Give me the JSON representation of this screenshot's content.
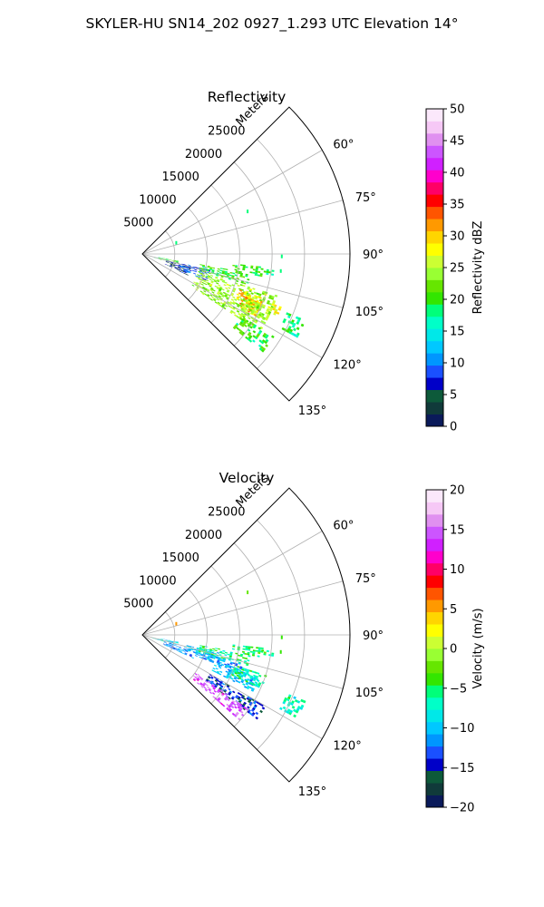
{
  "figure": {
    "suptitle": "SKYLER-HU  SN14_202  0927_1.293 UTC Elevation 14°"
  },
  "chart_data": [
    {
      "type": "heatmap",
      "subtype": "polar-sector-radar",
      "title": "Reflectivity",
      "radial_label": "Meters",
      "radial_ticks": [
        5000,
        10000,
        15000,
        20000,
        25000
      ],
      "radial_tick_labels": [
        "5000",
        "10000",
        "15000",
        "20000",
        "25000"
      ],
      "radial_range": [
        0,
        32000
      ],
      "angle_range_deg": [
        45,
        135
      ],
      "angle_ticks": [
        60,
        75,
        90,
        105,
        120,
        135
      ],
      "angle_tick_labels": [
        "60°",
        "75°",
        "90°",
        "105°",
        "120°",
        "135°"
      ],
      "grid": true,
      "colorbar": {
        "label": "Reflectivity dBZ",
        "range": [
          0,
          50
        ],
        "ticks": [
          0,
          5,
          10,
          15,
          20,
          25,
          30,
          35,
          40,
          45,
          50
        ],
        "tick_labels": [
          "0",
          "5",
          "10",
          "15",
          "20",
          "25",
          "30",
          "35",
          "40",
          "45",
          "50"
        ],
        "colors": [
          "#0a1a5a",
          "#103a3a",
          "#0d5a3a",
          "#0000c8",
          "#1a50ff",
          "#0096ff",
          "#00c8ff",
          "#00e8e8",
          "#00ffc8",
          "#00ff7a",
          "#33e600",
          "#66e600",
          "#99ff33",
          "#ccff33",
          "#ffff00",
          "#ffd500",
          "#ff9900",
          "#ff5500",
          "#ff0000",
          "#ff0066",
          "#ff00cc",
          "#d020ff",
          "#cc55ff",
          "#e090f0",
          "#f6c8f6",
          "#fbe8fb"
        ]
      },
      "echo_regions": [
        {
          "r": [
            1500,
            3200
          ],
          "az": [
            105,
            108
          ],
          "value": 20
        },
        {
          "r": [
            2500,
            5500
          ],
          "az": [
            101,
            106
          ],
          "value": 20
        },
        {
          "r": [
            3800,
            7500
          ],
          "az": [
            104,
            115
          ],
          "value": 5
        },
        {
          "r": [
            6000,
            10500
          ],
          "az": [
            103,
            112
          ],
          "value": 9
        },
        {
          "r": [
            9000,
            17000
          ],
          "az": [
            100,
            106
          ],
          "value": 20
        },
        {
          "r": [
            14000,
            18500
          ],
          "az": [
            96,
            100
          ],
          "value": 20
        },
        {
          "r": [
            9000,
            21500
          ],
          "az": [
            107,
            123
          ],
          "value": 24
        },
        {
          "r": [
            16000,
            20000
          ],
          "az": [
            110,
            118
          ],
          "value": 30
        },
        {
          "r": [
            21000,
            23000
          ],
          "az": [
            110,
            114
          ],
          "value": 28
        },
        {
          "r": [
            17000,
            21500
          ],
          "az": [
            113,
            118
          ],
          "value": 24
        },
        {
          "r": [
            18000,
            24000
          ],
          "az": [
            122,
            129
          ],
          "value": 20
        },
        {
          "r": [
            24000,
            27000
          ],
          "az": [
            112,
            118
          ],
          "value": 18
        },
        {
          "r": [
            18500,
            20500
          ],
          "az": [
            97,
            99
          ],
          "value": 18
        }
      ],
      "isolated_echoes": [
        {
          "r": 5500,
          "az": 72,
          "value": 18
        },
        {
          "r": 17500,
          "az": 68,
          "value": 18
        },
        {
          "r": 21500,
          "az": 91,
          "value": 18
        },
        {
          "r": 21500,
          "az": 97,
          "value": 18
        }
      ]
    },
    {
      "type": "heatmap",
      "subtype": "polar-sector-radar",
      "title": "Velocity",
      "radial_label": "Meters",
      "radial_ticks": [
        5000,
        10000,
        15000,
        20000,
        25000
      ],
      "radial_tick_labels": [
        "5000",
        "10000",
        "15000",
        "20000",
        "25000"
      ],
      "radial_range": [
        0,
        32000
      ],
      "angle_range_deg": [
        45,
        135
      ],
      "angle_ticks": [
        60,
        75,
        90,
        105,
        120,
        135
      ],
      "angle_tick_labels": [
        "60°",
        "75°",
        "90°",
        "105°",
        "120°",
        "135°"
      ],
      "grid": true,
      "colorbar": {
        "label": "Velocity (m/s)",
        "range": [
          -20,
          20
        ],
        "ticks": [
          -20,
          -15,
          -10,
          -5,
          0,
          5,
          10,
          15,
          20
        ],
        "tick_labels": [
          "−20",
          "−15",
          "−10",
          "−5",
          "0",
          "5",
          "10",
          "15",
          "20"
        ],
        "colors": [
          "#0a1a5a",
          "#103a3a",
          "#0d5a3a",
          "#0000c8",
          "#1a50ff",
          "#0096ff",
          "#00c8ff",
          "#00e8e8",
          "#00ffc8",
          "#00ff7a",
          "#33e600",
          "#66e600",
          "#99ff33",
          "#ccff33",
          "#ffff00",
          "#ffd500",
          "#ff9900",
          "#ff5500",
          "#ff0000",
          "#ff0066",
          "#ff00cc",
          "#d020ff",
          "#cc55ff",
          "#e090f0",
          "#f6c8f6",
          "#fbe8fb"
        ]
      },
      "echo_regions": [
        {
          "r": [
            1500,
            3200
          ],
          "az": [
            105,
            108
          ],
          "value": -8
        },
        {
          "r": [
            2500,
            5500
          ],
          "az": [
            101,
            106
          ],
          "value": -9
        },
        {
          "r": [
            3500,
            9000
          ],
          "az": [
            106,
            114
          ],
          "value": -12
        },
        {
          "r": [
            7000,
            12000
          ],
          "az": [
            103,
            110
          ],
          "value": -10
        },
        {
          "r": [
            9000,
            17000
          ],
          "az": [
            100,
            106
          ],
          "value": -6
        },
        {
          "r": [
            14000,
            18500
          ],
          "az": [
            96,
            100
          ],
          "value": -5
        },
        {
          "r": [
            9000,
            16000
          ],
          "az": [
            106,
            112
          ],
          "value": -11
        },
        {
          "r": [
            12000,
            19000
          ],
          "az": [
            110,
            117
          ],
          "value": -10
        },
        {
          "r": [
            15000,
            20000
          ],
          "az": [
            108,
            114
          ],
          "value": -6
        },
        {
          "r": [
            12000,
            22000
          ],
          "az": [
            120,
            126
          ],
          "value": -14
        },
        {
          "r": [
            10000,
            20000
          ],
          "az": [
            125,
            131
          ],
          "value": 14
        },
        {
          "r": [
            24000,
            27000
          ],
          "az": [
            112,
            118
          ],
          "value": -7
        },
        {
          "r": [
            18500,
            20500
          ],
          "az": [
            97,
            99
          ],
          "value": -5
        }
      ],
      "isolated_echoes": [
        {
          "r": 5500,
          "az": 72,
          "value": 6
        },
        {
          "r": 17500,
          "az": 68,
          "value": -2
        },
        {
          "r": 21500,
          "az": 91,
          "value": -4
        },
        {
          "r": 21500,
          "az": 97,
          "value": -4
        }
      ]
    }
  ]
}
